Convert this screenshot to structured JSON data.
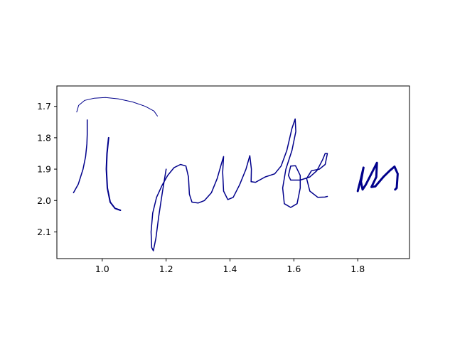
{
  "chart_data": {
    "type": "line",
    "title": "",
    "xlabel": "",
    "ylabel": "",
    "xlim": [
      0.858,
      1.962
    ],
    "ylim": [
      2.185,
      1.635
    ],
    "y_inverted": true,
    "grid": false,
    "line_color": "#00008b",
    "xticks": [
      {
        "value": 1.0,
        "label": "1.0"
      },
      {
        "value": 1.2,
        "label": "1.2"
      },
      {
        "value": 1.4,
        "label": "1.4"
      },
      {
        "value": 1.6,
        "label": "1.6"
      },
      {
        "value": 1.8,
        "label": "1.8"
      }
    ],
    "yticks": [
      {
        "value": 1.7,
        "label": "1.7"
      },
      {
        "value": 1.8,
        "label": "1.8"
      },
      {
        "value": 1.9,
        "label": "1.9"
      },
      {
        "value": 2.0,
        "label": "2.0"
      },
      {
        "value": 2.1,
        "label": "2.1"
      }
    ],
    "series": [
      {
        "stroke": 1.0,
        "points": [
          [
            0.92,
            1.718
          ],
          [
            0.926,
            1.697
          ],
          [
            0.945,
            1.681
          ],
          [
            0.975,
            1.674
          ],
          [
            1.01,
            1.672
          ],
          [
            1.05,
            1.676
          ],
          [
            1.095,
            1.686
          ],
          [
            1.135,
            1.7
          ],
          [
            1.162,
            1.715
          ],
          [
            1.173,
            1.731
          ]
        ]
      },
      {
        "stroke": 1.5,
        "points": [
          [
            0.91,
            1.975
          ],
          [
            0.925,
            1.948
          ],
          [
            0.94,
            1.9
          ],
          [
            0.948,
            1.86
          ],
          [
            0.952,
            1.82
          ],
          [
            0.953,
            1.79
          ],
          [
            0.953,
            1.743
          ]
        ]
      },
      {
        "stroke": 2.0,
        "points": [
          [
            1.02,
            1.8
          ],
          [
            1.015,
            1.85
          ],
          [
            1.013,
            1.9
          ],
          [
            1.016,
            1.96
          ],
          [
            1.025,
            2.005
          ],
          [
            1.04,
            2.025
          ],
          [
            1.057,
            2.031
          ]
        ]
      },
      {
        "stroke": 1.5,
        "points": [
          [
            1.2,
            1.9
          ],
          [
            1.188,
            1.975
          ],
          [
            1.177,
            2.05
          ],
          [
            1.168,
            2.12
          ],
          [
            1.16,
            2.16
          ],
          [
            1.155,
            2.15
          ],
          [
            1.153,
            2.1
          ],
          [
            1.158,
            2.04
          ],
          [
            1.17,
            1.99
          ],
          [
            1.188,
            1.95
          ],
          [
            1.205,
            1.92
          ],
          [
            1.225,
            1.895
          ],
          [
            1.245,
            1.885
          ],
          [
            1.262,
            1.89
          ],
          [
            1.27,
            1.925
          ],
          [
            1.273,
            1.98
          ],
          [
            1.281,
            2.005
          ],
          [
            1.3,
            2.008
          ],
          [
            1.32,
            2.0
          ],
          [
            1.342,
            1.975
          ],
          [
            1.36,
            1.93
          ],
          [
            1.374,
            1.88
          ],
          [
            1.38,
            1.86
          ],
          [
            1.377,
            1.91
          ],
          [
            1.38,
            1.97
          ],
          [
            1.393,
            1.997
          ],
          [
            1.41,
            1.99
          ],
          [
            1.43,
            1.95
          ],
          [
            1.45,
            1.9
          ],
          [
            1.462,
            1.857
          ],
          [
            1.467,
            1.9
          ],
          [
            1.466,
            1.94
          ],
          [
            1.48,
            1.942
          ],
          [
            1.51,
            1.925
          ],
          [
            1.54,
            1.915
          ],
          [
            1.56,
            1.89
          ],
          [
            1.578,
            1.84
          ],
          [
            1.594,
            1.77
          ],
          [
            1.604,
            1.74
          ],
          [
            1.606,
            1.78
          ],
          [
            1.594,
            1.84
          ],
          [
            1.575,
            1.9
          ],
          [
            1.565,
            1.96
          ],
          [
            1.57,
            2.01
          ],
          [
            1.59,
            2.022
          ],
          [
            1.61,
            2.01
          ],
          [
            1.62,
            1.96
          ],
          [
            1.62,
            1.92
          ],
          [
            1.605,
            1.889
          ],
          [
            1.59,
            1.89
          ],
          [
            1.583,
            1.92
          ],
          [
            1.59,
            1.935
          ],
          [
            1.62,
            1.935
          ],
          [
            1.65,
            1.925
          ],
          [
            1.672,
            1.905
          ],
          [
            1.69,
            1.87
          ],
          [
            1.698,
            1.85
          ],
          [
            1.705,
            1.85
          ],
          [
            1.698,
            1.885
          ],
          [
            1.68,
            1.9
          ],
          [
            1.655,
            1.905
          ],
          [
            1.64,
            1.93
          ],
          [
            1.65,
            1.97
          ],
          [
            1.675,
            1.99
          ],
          [
            1.697,
            1.989
          ],
          [
            1.705,
            1.987
          ]
        ]
      },
      {
        "stroke": 3.0,
        "points": [
          [
            1.8,
            1.97
          ],
          [
            1.81,
            1.93
          ],
          [
            1.818,
            1.895
          ],
          [
            1.81,
            1.94
          ],
          [
            1.815,
            1.965
          ],
          [
            1.825,
            1.95
          ],
          [
            1.845,
            1.91
          ],
          [
            1.86,
            1.88
          ],
          [
            1.858,
            1.925
          ],
          [
            1.843,
            1.957
          ],
          [
            1.855,
            1.955
          ],
          [
            1.88,
            1.925
          ],
          [
            1.9,
            1.905
          ],
          [
            1.915,
            1.892
          ],
          [
            1.925,
            1.915
          ],
          [
            1.922,
            1.96
          ],
          [
            1.917,
            1.965
          ]
        ]
      }
    ]
  }
}
